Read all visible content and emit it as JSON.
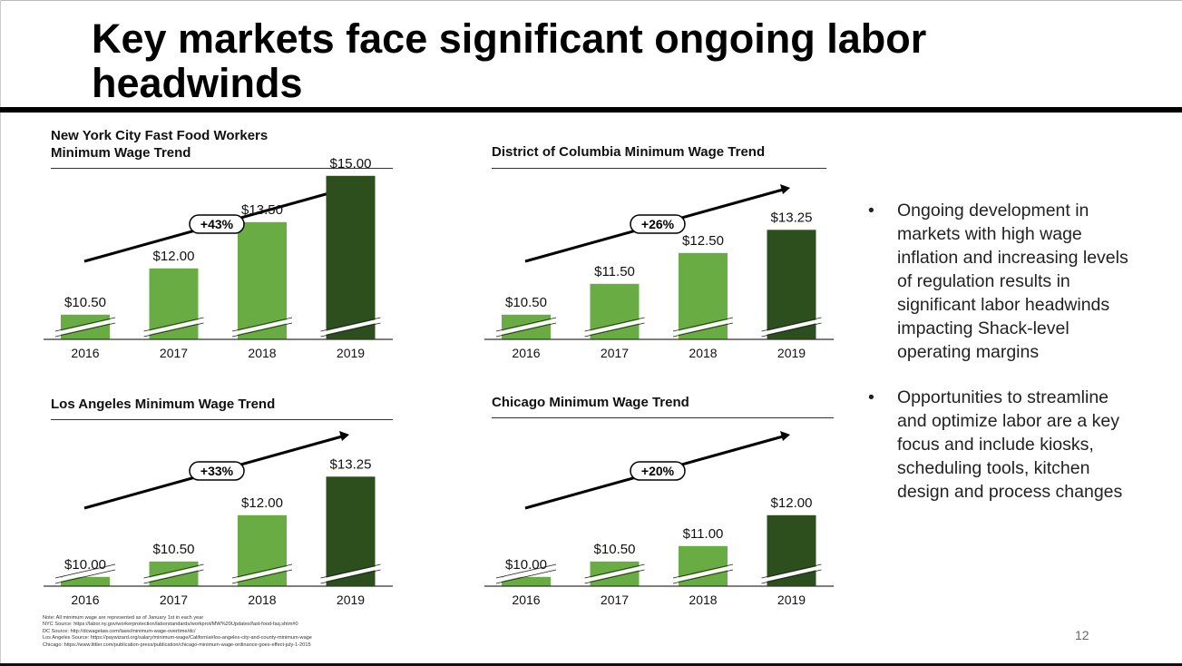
{
  "title": "Key markets face significant ongoing labor headwinds",
  "colors": {
    "bar_light": "#6aac44",
    "bar_dark": "#2d4f1e",
    "arrow": "#000000",
    "break_mark": "#ffffff"
  },
  "chart_data": [
    {
      "type": "bar",
      "title_lines": [
        "New York City Fast Food Workers",
        "Minimum Wage Trend"
      ],
      "categories": [
        "2016",
        "2017",
        "2018",
        "2019"
      ],
      "values": [
        10.5,
        12.0,
        13.5,
        15.0
      ],
      "value_labels": [
        "$10.50",
        "$12.00",
        "$13.50",
        "$15.00"
      ],
      "growth_label": "+43%",
      "axis_break": true,
      "highlight_last": true
    },
    {
      "type": "bar",
      "title_lines": [
        "District of Columbia Minimum Wage Trend"
      ],
      "categories": [
        "2016",
        "2017",
        "2018",
        "2019"
      ],
      "values": [
        10.5,
        11.5,
        12.5,
        13.25
      ],
      "value_labels": [
        "$10.50",
        "$11.50",
        "$12.50",
        "$13.25"
      ],
      "growth_label": "+26%",
      "axis_break": true,
      "highlight_last": true
    },
    {
      "type": "bar",
      "title_lines": [
        "Los Angeles Minimum Wage Trend"
      ],
      "categories": [
        "2016",
        "2017",
        "2018",
        "2019"
      ],
      "values": [
        10.0,
        10.5,
        12.0,
        13.25
      ],
      "value_labels": [
        "$10.00",
        "$10.50",
        "$12.00",
        "$13.25"
      ],
      "growth_label": "+33%",
      "axis_break": true,
      "highlight_last": true
    },
    {
      "type": "bar",
      "title_lines": [
        "Chicago Minimum Wage Trend"
      ],
      "categories": [
        "2016",
        "2017",
        "2018",
        "2019"
      ],
      "values": [
        10.0,
        10.5,
        11.0,
        12.0
      ],
      "value_labels": [
        "$10.00",
        "$10.50",
        "$11.00",
        "$12.00"
      ],
      "growth_label": "+20%",
      "axis_break": true,
      "highlight_last": true
    }
  ],
  "bullets": [
    {
      "marker": "•",
      "text": "Ongoing development in markets with high wage inflation and increasing levels of regulation results in significant labor headwinds impacting Shack-level operating margins"
    },
    {
      "marker": "•",
      "text": "Opportunities to streamline and optimize labor are a key focus and include kiosks, scheduling tools, kitchen design and process changes"
    }
  ],
  "notes": [
    "Note: All minimum wage are represented as of January 1st in each year",
    "NYC Source: https://labor.ny.gov/workerprotection/laborstandards/workprot/MW%20Updates/fast-food-faq.shtm#0",
    "DC Source: http://dcwagelaw.com/laws/minimum-wage-overtime/dc/",
    "Los Angeles Source: https://paywizard.org/salary/minimum-wage/California#los-angeles-city-and-county-minimum-wage",
    "Chicago: https://www.littler.com/publication-press/publication/chicago-minimum-wage-ordinance-goes-effect-july-1-2015"
  ],
  "page_number": "12"
}
